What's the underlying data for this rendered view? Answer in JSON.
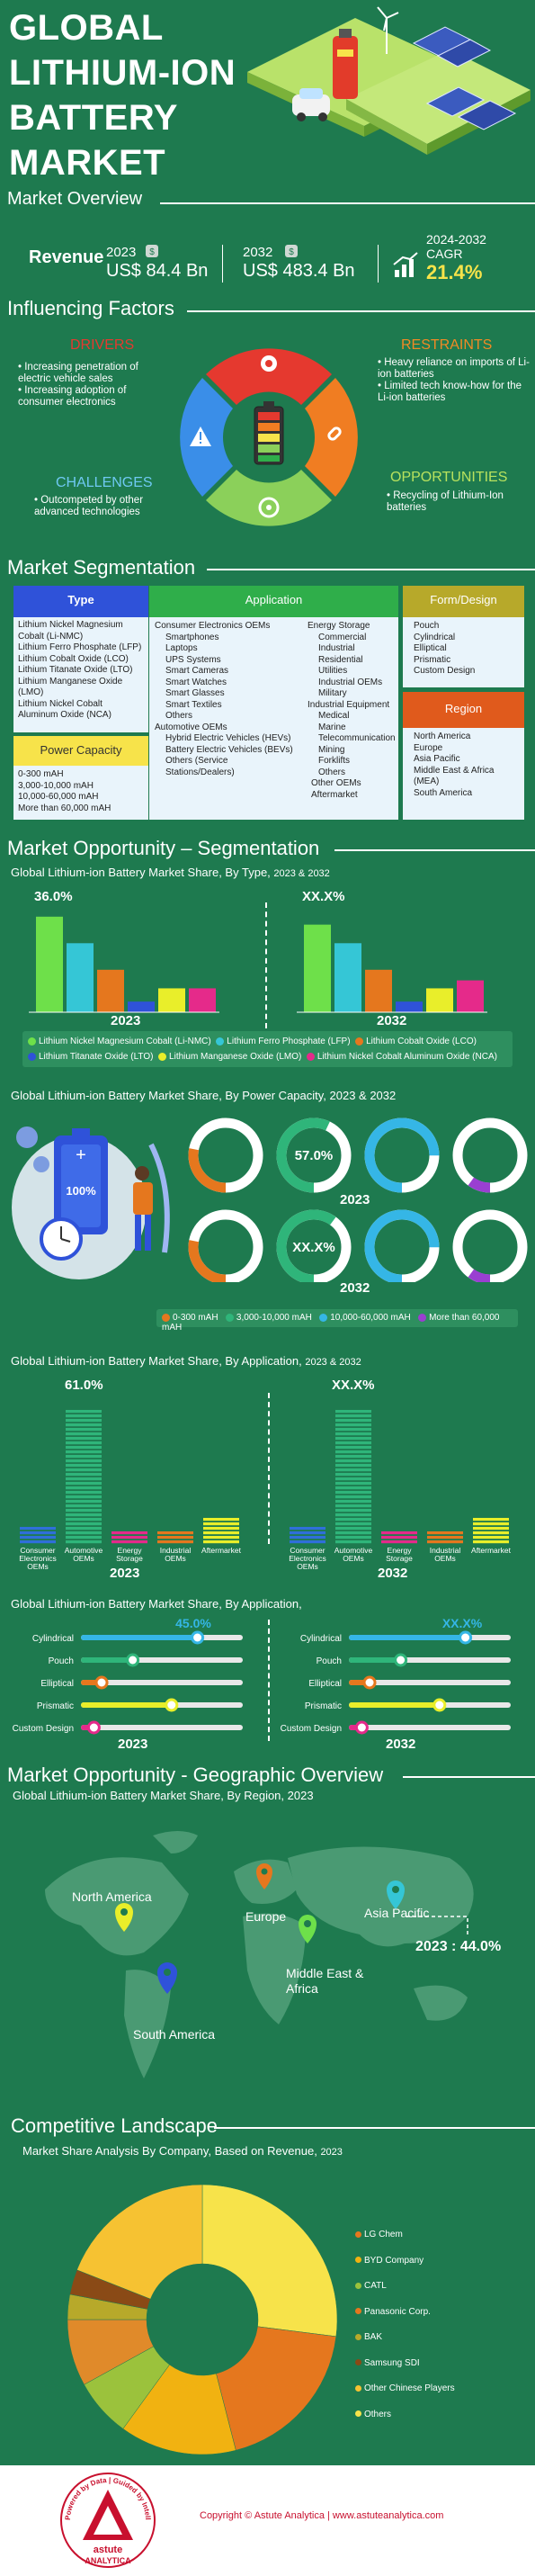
{
  "header": {
    "title_lines": [
      "GLOBAL",
      "LITHIUM-ION",
      "BATTERY",
      "MARKET"
    ],
    "subtitle": "Market Overview"
  },
  "overview": {
    "revenue_label": "Revenue",
    "y2023": "2023",
    "v2023": "US$ 84.4 Bn",
    "y2032": "2032",
    "v2032": "US$ 483.4 Bn",
    "cagr_period": "2024-2032",
    "cagr_label": "CAGR",
    "cagr_value": "21.4%"
  },
  "factors": {
    "title": "Influencing Factors",
    "drivers_title": "DRIVERS",
    "drivers": [
      "Increasing penetration of electric vehicle sales",
      "Increasing adoption of consumer electronics"
    ],
    "restraints_title": "RESTRAINTS",
    "restraints": [
      "Heavy reliance on imports of Li-ion batteries",
      "Limited tech know-how for the Li-ion batteries"
    ],
    "challenges_title": "CHALLENGES",
    "challenges": [
      "Outcompeted by other advanced technologies"
    ],
    "opportunities_title": "OPPORTUNITIES",
    "opportunities": [
      "Recycling of Lithium-Ion batteries"
    ]
  },
  "segmentation": {
    "title": "Market Segmentation",
    "type_title": "Type",
    "type_items": [
      "Lithium Nickel Magnesium Cobalt (Li-NMC)",
      "Lithium Ferro Phosphate (LFP)",
      "Lithium Cobalt Oxide (LCO)",
      "Lithium Titanate Oxide (LTO)",
      "Lithium Manganese Oxide (LMO)",
      "Lithium Nickel Cobalt Aluminum Oxide (NCA)"
    ],
    "power_title": "Power Capacity",
    "power_items": [
      "0-300 mAH",
      "3,000-10,000 mAH",
      "10,000-60,000 mAH",
      "More than 60,000 mAH"
    ],
    "app_title": "Application",
    "app_col1_head": "Consumer Electronics OEMs",
    "app_col1": [
      "Smartphones",
      "Laptops",
      "UPS Systems",
      "Smart Cameras",
      "Smart Watches",
      "Smart Glasses",
      "Smart Textiles",
      "Others"
    ],
    "app_col1b_head": "Automotive OEMs",
    "app_col1b": [
      "Hybrid Electric Vehicles (HEVs)",
      "Battery Electric Vehicles (BEVs)",
      "Others (Service Stations/Dealers)"
    ],
    "app_col2_head": "Energy Storage",
    "app_col2": [
      "Commercial",
      "Industrial",
      "Residential",
      "Utilities",
      "Industrial OEMs",
      "Military"
    ],
    "app_col2b_head": "Industrial Equipment",
    "app_col2b": [
      "Medical",
      "Marine",
      "Telecommunication",
      "Mining",
      "Forklifts",
      "Others"
    ],
    "app_col2c": [
      "Other OEMs",
      "Aftermarket"
    ],
    "form_title": "Form/Design",
    "form_items": [
      "Pouch",
      "Cylindrical",
      "Elliptical",
      "Prismatic",
      "Custom Design"
    ],
    "region_title": "Region",
    "region_items": [
      "North America",
      "Europe",
      "Asia Pacific",
      "Middle East & Africa (MEA)",
      "South America"
    ]
  },
  "opp_seg": {
    "title": "Market Opportunity – Segmentation",
    "type_chart_title": "Global Lithium-ion Battery Market Share, By Type, ",
    "type_chart_years": "2023 & 2032",
    "type_2023_label": "36.0%",
    "type_2032_label": "XX.X%",
    "year_a": "2023",
    "year_b": "2032",
    "power_chart_title": "Global Lithium-ion Battery Market Share, By Power Capacity, 2023 & 2032",
    "power_pct_a": "57.0%",
    "power_pct_b": "XX.X%",
    "battery_pct": "100%",
    "app_chart_title": "Global Lithium-ion Battery Market Share, By Application, ",
    "app_chart_years": "2023 & 2032",
    "app_2023_label": "61.0%",
    "app_2032_label": "XX.X%",
    "form_chart_title": "Global Lithium-ion Battery Market Share, By Application,",
    "form_2023_label": "45.0%",
    "form_2032_label": "XX.X%"
  },
  "type_legend": [
    "Lithium Nickel Magnesium Cobalt (Li-NMC)",
    "Lithium Ferro Phosphate (LFP)",
    "Lithium Cobalt Oxide (LCO)",
    "Lithium Titanate Oxide (LTO)",
    "Lithium Manganese Oxide (LMO)",
    "Lithium Nickel Cobalt Aluminum Oxide (NCA)"
  ],
  "power_legend": [
    "0-300 mAH",
    "3,000-10,000 mAH",
    "10,000-60,000 mAH",
    "More than 60,000 mAH"
  ],
  "app_categories": [
    "Consumer Electronics OEMs",
    "Automotive OEMs",
    "Energy Storage",
    "Industrial OEMs",
    "Aftermarket"
  ],
  "form_categories": [
    "Cylindrical",
    "Pouch",
    "Elliptical",
    "Prismatic",
    "Custom Design"
  ],
  "geo": {
    "title": "Market Opportunity - Geographic Overview",
    "chart_title": "Global Lithium-ion Battery Market Share, By Region, 2023",
    "north_america": "North America",
    "europe": "Europe",
    "mea": "Middle East & Africa",
    "apac": "Asia Pacific",
    "south_america": "South America",
    "apac_value": "2023 : 44.0%"
  },
  "competitive": {
    "title": "Competitive Landscape",
    "chart_title": "Market Share Analysis By Company, Based on Revenue, ",
    "chart_year": "2023",
    "legend": [
      "LG Chem",
      "BYD Company",
      "CATL",
      "Panasonic Corp.",
      "BAK",
      "Samsung SDI",
      "Other Chinese Players",
      "Others"
    ]
  },
  "footer": {
    "seal_text": "Powered by Data | Guided by Intelligence",
    "brand_top": "astute",
    "brand_bottom": "ANALYTICA",
    "copyright": "Copyright © Astute Analytica  |  www.astuteanalytica.com"
  },
  "colors": {
    "bg": "#1e7a4f",
    "yellow": "#f7e34a",
    "nmc": "#6ee04a",
    "lfp": "#35c6d6",
    "lco": "#e5771e",
    "lto": "#2f52d9",
    "lmo": "#e9ee2a",
    "nca": "#e52a8a"
  },
  "chart_data": [
    {
      "type": "bar",
      "title": "Global Lithium-ion Battery Market Share, By Type, 2023 & 2032",
      "categories": [
        "Lithium Nickel Magnesium Cobalt (Li-NMC)",
        "Lithium Ferro Phosphate (LFP)",
        "Lithium Cobalt Oxide (LCO)",
        "Lithium Titanate Oxide (LTO)",
        "Lithium Manganese Oxide (LMO)",
        "Lithium Nickel Cobalt Aluminum Oxide (NCA)"
      ],
      "series": [
        {
          "name": "2023",
          "values": [
            36.0,
            26,
            16,
            4,
            9,
            9
          ]
        },
        {
          "name": "2032",
          "values": [
            33,
            26,
            16,
            4,
            9,
            12
          ]
        }
      ]
    },
    {
      "type": "pie",
      "title": "Global Lithium-ion Battery Market Share, By Power Capacity, 2023 & 2032",
      "categories": [
        "0-300 mAH",
        "3,000-10,000 mAH",
        "10,000-60,000 mAH",
        "More than 60,000 mAH"
      ],
      "series": [
        {
          "name": "2023",
          "values": [
            28,
            57.0,
            75,
            10
          ]
        },
        {
          "name": "2032",
          "values": [
            28,
            60,
            75,
            10
          ]
        }
      ]
    },
    {
      "type": "bar",
      "title": "Global Lithium-ion Battery Market Share, By Application, 2023 & 2032",
      "categories": [
        "Consumer Electronics OEMs",
        "Automotive OEMs",
        "Energy Storage",
        "Industrial OEMs",
        "Aftermarket"
      ],
      "series": [
        {
          "name": "2023",
          "values": [
            9,
            61.0,
            7,
            7,
            13
          ]
        },
        {
          "name": "2032",
          "values": [
            9,
            61,
            7,
            7,
            13
          ]
        }
      ]
    },
    {
      "type": "bar",
      "title": "Global Lithium-ion Battery Market Share, By Application,",
      "categories": [
        "Cylindrical",
        "Pouch",
        "Elliptical",
        "Prismatic",
        "Custom Design"
      ],
      "series": [
        {
          "name": "2023",
          "values": [
            45.0,
            20,
            8,
            35,
            5
          ]
        },
        {
          "name": "2032",
          "values": [
            45,
            20,
            8,
            35,
            5
          ]
        }
      ]
    },
    {
      "type": "pie",
      "title": "Market Share Analysis By Company, Based on Revenue, 2023",
      "categories": [
        "LG Chem",
        "BYD Company",
        "CATL",
        "Panasonic Corp.",
        "BAK",
        "Samsung SDI",
        "Other Chinese Players",
        "Others"
      ],
      "values": [
        19,
        14,
        7,
        8,
        3,
        3,
        19,
        27
      ]
    }
  ]
}
